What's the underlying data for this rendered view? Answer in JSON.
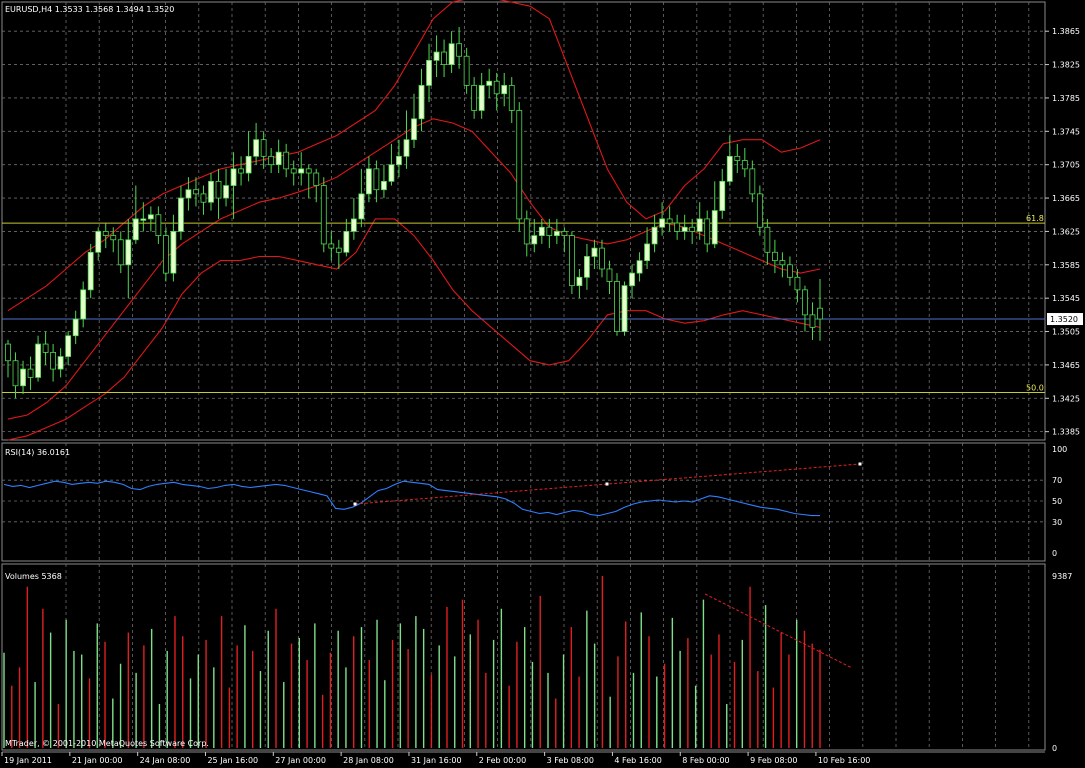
{
  "chart_data": [
    {
      "type": "candlestick",
      "title": "EURUSD,H4",
      "ohlc_header": "1.3533 1.3568 1.3494 1.3520",
      "current_price": 1.352,
      "current_price_label": "1.3520",
      "ylim": [
        1.3375,
        1.39
      ],
      "y_ticks": [
        "1.3865",
        "1.3825",
        "1.3785",
        "1.3745",
        "1.3705",
        "1.3665",
        "1.3625",
        "1.3585",
        "1.3545",
        "1.3505",
        "1.3465",
        "1.3425",
        "1.3385"
      ],
      "fib_levels": [
        {
          "label": "61.8",
          "value": 1.3635
        },
        {
          "label": "50.0",
          "value": 1.3432
        }
      ],
      "candles": [
        [
          1.349,
          1.347,
          1.3495,
          1.345
        ],
        [
          1.347,
          1.344,
          1.348,
          1.3425
        ],
        [
          1.344,
          1.346,
          1.347,
          1.343
        ],
        [
          1.346,
          1.345,
          1.3475,
          1.3435
        ],
        [
          1.345,
          1.349,
          1.35,
          1.3445
        ],
        [
          1.349,
          1.348,
          1.3505,
          1.3465
        ],
        [
          1.348,
          1.346,
          1.349,
          1.3445
        ],
        [
          1.346,
          1.3475,
          1.3485,
          1.345
        ],
        [
          1.3475,
          1.35,
          1.3505,
          1.3465
        ],
        [
          1.35,
          1.352,
          1.353,
          1.349
        ],
        [
          1.352,
          1.3555,
          1.3565,
          1.351
        ],
        [
          1.3555,
          1.36,
          1.361,
          1.3545
        ],
        [
          1.36,
          1.3625,
          1.363,
          1.359
        ],
        [
          1.3625,
          1.362,
          1.3635,
          1.3605
        ],
        [
          1.362,
          1.3615,
          1.363,
          1.36
        ],
        [
          1.3615,
          1.3585,
          1.3625,
          1.3575
        ],
        [
          1.3585,
          1.3615,
          1.364,
          1.3545
        ],
        [
          1.3615,
          1.364,
          1.368,
          1.361
        ],
        [
          1.364,
          1.364,
          1.366,
          1.3625
        ],
        [
          1.364,
          1.3645,
          1.3655,
          1.3625
        ],
        [
          1.3645,
          1.362,
          1.3655,
          1.361
        ],
        [
          1.362,
          1.3575,
          1.363,
          1.3565
        ],
        [
          1.3575,
          1.3625,
          1.3645,
          1.3565
        ],
        [
          1.3625,
          1.3665,
          1.368,
          1.3615
        ],
        [
          1.3665,
          1.3675,
          1.369,
          1.365
        ],
        [
          1.3675,
          1.367,
          1.369,
          1.3655
        ],
        [
          1.367,
          1.366,
          1.368,
          1.3645
        ],
        [
          1.366,
          1.3685,
          1.3695,
          1.365
        ],
        [
          1.3685,
          1.3665,
          1.37,
          1.364
        ],
        [
          1.3665,
          1.368,
          1.37,
          1.3655
        ],
        [
          1.368,
          1.37,
          1.372,
          1.364
        ],
        [
          1.37,
          1.3695,
          1.3715,
          1.368
        ],
        [
          1.3695,
          1.3715,
          1.3745,
          1.3685
        ],
        [
          1.3715,
          1.3735,
          1.3755,
          1.3705
        ],
        [
          1.3735,
          1.3715,
          1.3745,
          1.37
        ],
        [
          1.3715,
          1.3705,
          1.3725,
          1.3695
        ],
        [
          1.3705,
          1.372,
          1.3735,
          1.3695
        ],
        [
          1.372,
          1.37,
          1.373,
          1.369
        ],
        [
          1.37,
          1.3695,
          1.371,
          1.368
        ],
        [
          1.3695,
          1.37,
          1.372,
          1.368
        ],
        [
          1.37,
          1.3695,
          1.3705,
          1.3665
        ],
        [
          1.3695,
          1.368,
          1.37,
          1.366
        ],
        [
          1.368,
          1.361,
          1.369,
          1.36
        ],
        [
          1.361,
          1.3605,
          1.3625,
          1.359
        ],
        [
          1.3605,
          1.36,
          1.3615,
          1.358
        ],
        [
          1.36,
          1.3625,
          1.364,
          1.3595
        ],
        [
          1.3625,
          1.364,
          1.3665,
          1.3615
        ],
        [
          1.364,
          1.367,
          1.37,
          1.363
        ],
        [
          1.367,
          1.37,
          1.3715,
          1.366
        ],
        [
          1.37,
          1.3675,
          1.371,
          1.366
        ],
        [
          1.3675,
          1.3685,
          1.3705,
          1.3665
        ],
        [
          1.3685,
          1.3705,
          1.373,
          1.368
        ],
        [
          1.3705,
          1.3715,
          1.3735,
          1.369
        ],
        [
          1.3715,
          1.3735,
          1.377,
          1.37
        ],
        [
          1.3735,
          1.376,
          1.379,
          1.3725
        ],
        [
          1.376,
          1.38,
          1.382,
          1.3745
        ],
        [
          1.38,
          1.383,
          1.385,
          1.378
        ],
        [
          1.383,
          1.384,
          1.386,
          1.381
        ],
        [
          1.384,
          1.3825,
          1.3855,
          1.381
        ],
        [
          1.3825,
          1.385,
          1.3865,
          1.3815
        ],
        [
          1.385,
          1.3835,
          1.387,
          1.382
        ],
        [
          1.3835,
          1.38,
          1.3845,
          1.379
        ],
        [
          1.38,
          1.377,
          1.381,
          1.376
        ],
        [
          1.377,
          1.38,
          1.3815,
          1.376
        ],
        [
          1.38,
          1.3805,
          1.382,
          1.3785
        ],
        [
          1.3805,
          1.379,
          1.3815,
          1.377
        ],
        [
          1.379,
          1.38,
          1.3815,
          1.3775
        ],
        [
          1.38,
          1.377,
          1.381,
          1.3755
        ],
        [
          1.377,
          1.364,
          1.378,
          1.3625
        ],
        [
          1.364,
          1.361,
          1.365,
          1.3595
        ],
        [
          1.361,
          1.362,
          1.364,
          1.36
        ],
        [
          1.362,
          1.363,
          1.364,
          1.361
        ],
        [
          1.363,
          1.362,
          1.364,
          1.3605
        ],
        [
          1.362,
          1.3625,
          1.364,
          1.361
        ],
        [
          1.3625,
          1.362,
          1.363,
          1.36
        ],
        [
          1.362,
          1.356,
          1.3625,
          1.355
        ],
        [
          1.356,
          1.357,
          1.358,
          1.3545
        ],
        [
          1.357,
          1.3595,
          1.361,
          1.3555
        ],
        [
          1.3595,
          1.3605,
          1.3615,
          1.358
        ],
        [
          1.3605,
          1.358,
          1.3615,
          1.357
        ],
        [
          1.358,
          1.3565,
          1.359,
          1.355
        ],
        [
          1.3565,
          1.3505,
          1.3575,
          1.35
        ],
        [
          1.3505,
          1.356,
          1.3565,
          1.35
        ],
        [
          1.356,
          1.3575,
          1.3585,
          1.3545
        ],
        [
          1.3575,
          1.359,
          1.36,
          1.3565
        ],
        [
          1.359,
          1.361,
          1.363,
          1.358
        ],
        [
          1.361,
          1.363,
          1.3645,
          1.36
        ],
        [
          1.363,
          1.364,
          1.366,
          1.362
        ],
        [
          1.364,
          1.3635,
          1.3655,
          1.3625
        ],
        [
          1.3635,
          1.3625,
          1.3645,
          1.3615
        ],
        [
          1.3625,
          1.363,
          1.3645,
          1.3615
        ],
        [
          1.363,
          1.3625,
          1.364,
          1.361
        ],
        [
          1.3625,
          1.364,
          1.366,
          1.3615
        ],
        [
          1.364,
          1.361,
          1.365,
          1.36
        ],
        [
          1.361,
          1.365,
          1.3685,
          1.3605
        ],
        [
          1.365,
          1.3685,
          1.37,
          1.364
        ],
        [
          1.3685,
          1.3715,
          1.374,
          1.368
        ],
        [
          1.3715,
          1.371,
          1.373,
          1.3695
        ],
        [
          1.371,
          1.37,
          1.3725,
          1.369
        ],
        [
          1.37,
          1.367,
          1.371,
          1.366
        ],
        [
          1.367,
          1.363,
          1.368,
          1.362
        ],
        [
          1.363,
          1.36,
          1.364,
          1.3585
        ],
        [
          1.36,
          1.359,
          1.3615,
          1.3575
        ],
        [
          1.359,
          1.3585,
          1.36,
          1.357
        ],
        [
          1.3585,
          1.357,
          1.3595,
          1.356
        ],
        [
          1.357,
          1.3555,
          1.358,
          1.354
        ],
        [
          1.3555,
          1.3525,
          1.356,
          1.3505
        ],
        [
          1.3525,
          1.351,
          1.354,
          1.3495
        ],
        [
          1.3533,
          1.352,
          1.3568,
          1.3494
        ]
      ],
      "bollinger": {
        "upper": [
          1.353,
          1.3545,
          1.356,
          1.358,
          1.36,
          1.3615,
          1.3635,
          1.3655,
          1.367,
          1.368,
          1.369,
          1.37,
          1.3705,
          1.371,
          1.3715,
          1.372,
          1.373,
          1.374,
          1.3755,
          1.377,
          1.38,
          1.384,
          1.388,
          1.39,
          1.3905,
          1.3905,
          1.39,
          1.3895,
          1.388,
          1.382,
          1.376,
          1.37,
          1.366,
          1.364,
          1.365,
          1.368,
          1.37,
          1.373,
          1.3735,
          1.3735,
          1.372,
          1.3725,
          1.3735
        ],
        "middle": [
          1.34,
          1.3405,
          1.342,
          1.344,
          1.347,
          1.35,
          1.353,
          1.356,
          1.359,
          1.361,
          1.3625,
          1.364,
          1.365,
          1.366,
          1.3665,
          1.3672,
          1.368,
          1.369,
          1.3705,
          1.372,
          1.3735,
          1.375,
          1.376,
          1.3755,
          1.3745,
          1.372,
          1.3695,
          1.366,
          1.363,
          1.362,
          1.3615,
          1.361,
          1.3615,
          1.3625,
          1.3635,
          1.363,
          1.362,
          1.361,
          1.36,
          1.359,
          1.358,
          1.3575,
          1.358
        ],
        "lower": [
          1.3375,
          1.338,
          1.339,
          1.34,
          1.3415,
          1.343,
          1.345,
          1.348,
          1.351,
          1.355,
          1.3575,
          1.359,
          1.359,
          1.3595,
          1.3595,
          1.359,
          1.3585,
          1.358,
          1.36,
          1.364,
          1.364,
          1.362,
          1.359,
          1.3555,
          1.353,
          1.351,
          1.349,
          1.347,
          1.3465,
          1.347,
          1.3495,
          1.3525,
          1.353,
          1.353,
          1.352,
          1.3515,
          1.3518,
          1.3525,
          1.353,
          1.3525,
          1.352,
          1.3515,
          1.351
        ]
      }
    },
    {
      "type": "line",
      "title": "RSI(14) 36.0161",
      "ylim": [
        0,
        100
      ],
      "y_ticks": [
        "100",
        "70",
        "50",
        "30",
        "0"
      ],
      "values": [
        66,
        64,
        65,
        63,
        65,
        67,
        69,
        68,
        66,
        67,
        68,
        67,
        69,
        68,
        66,
        62,
        61,
        64,
        66,
        67,
        68,
        66,
        65,
        64,
        62,
        63,
        65,
        66,
        64,
        63,
        64,
        65,
        66,
        65,
        63,
        61,
        59,
        57,
        55,
        43,
        42,
        44,
        48,
        54,
        60,
        62,
        66,
        69,
        68,
        67,
        66,
        61,
        60,
        59,
        58,
        57,
        56,
        55,
        54,
        52,
        48,
        42,
        40,
        38,
        39,
        37,
        39,
        41,
        40,
        37,
        36,
        38,
        40,
        44,
        47,
        49,
        50,
        51,
        50,
        49,
        50,
        49,
        52,
        55,
        54,
        52,
        50,
        48,
        46,
        44,
        43,
        42,
        40,
        38,
        37,
        36,
        36
      ]
    },
    {
      "type": "bar",
      "title": "Volumes 5368",
      "ylim": [
        0,
        9387
      ],
      "y_ticks": [
        "9387",
        "0"
      ],
      "values": [
        5200,
        3400,
        4400,
        8800,
        3600,
        7600,
        6300,
        2400,
        7000,
        5300,
        5100,
        3800,
        6800,
        5800,
        2700,
        4600,
        6300,
        4100,
        5600,
        6500,
        2400,
        5300,
        7200,
        6100,
        3800,
        5100,
        5900,
        4400,
        7200,
        3300,
        5600,
        6700,
        5300,
        4200,
        6400,
        7600,
        3600,
        5700,
        6000,
        4800,
        6800,
        2900,
        5200,
        6400,
        4400,
        6100,
        6600,
        4800,
        7000,
        3700,
        5900,
        6800,
        5400,
        7200,
        6500,
        4000,
        5600,
        7700,
        5000,
        8100,
        6200,
        7000,
        4100,
        5900,
        7600,
        3400,
        5800,
        6600,
        4700,
        8300,
        4100,
        2700,
        5100,
        6600,
        3900,
        7500,
        5700,
        9387,
        2800,
        5000,
        6900,
        4100,
        7400,
        6100,
        3900,
        4600,
        7100,
        5300,
        6000,
        3400,
        8100,
        5100,
        6200,
        2400,
        4700,
        5900,
        8800,
        4200,
        7800,
        3300,
        6300,
        5100,
        7000,
        6400,
        5700,
        5368
      ],
      "up": [
        true,
        false,
        false,
        false,
        true,
        false,
        true,
        false,
        true,
        true,
        true,
        false,
        true,
        false,
        true,
        true,
        false,
        true,
        false,
        true,
        true,
        true,
        false,
        false,
        true,
        true,
        false,
        true,
        false,
        false,
        false,
        true,
        false,
        true,
        true,
        false,
        true,
        false,
        true,
        false,
        true,
        false,
        false,
        true,
        true,
        false,
        true,
        false,
        true,
        true,
        false,
        true,
        false,
        true,
        true,
        false,
        true,
        false,
        true,
        false,
        true,
        false,
        false,
        true,
        true,
        false,
        false,
        true,
        true,
        false,
        true,
        false,
        true,
        false,
        false,
        true,
        true,
        false,
        true,
        false,
        false,
        true,
        true,
        false,
        true,
        false,
        true,
        true,
        false,
        true,
        true,
        false,
        false,
        true,
        false,
        true,
        false,
        false,
        true,
        false,
        false,
        false,
        true,
        false,
        false,
        false
      ]
    }
  ],
  "x_labels": [
    "19 Jan 2011",
    "21 Jan 00:00",
    "24 Jan 08:00",
    "25 Jan 16:00",
    "27 Jan 00:00",
    "28 Jan 08:00",
    "31 Jan 16:00",
    "2 Feb 00:00",
    "3 Feb 08:00",
    "4 Feb 16:00",
    "8 Feb 00:00",
    "9 Feb 08:00",
    "10 Feb 16:00"
  ],
  "copyright": "MTrader, © 2001-2010 MetaQuotes Software Corp.",
  "colors": {
    "grid": "#6e6e6e",
    "bull": "#e6ffcc",
    "bear": "#000000",
    "wick": "#4fd94f",
    "bollinger": "#e01818",
    "rsi": "#2f80ff",
    "vol_up": "#7fe08a",
    "vol_down": "#e02020",
    "current_line": "#4f6fd0",
    "fib": "#c8c832"
  }
}
